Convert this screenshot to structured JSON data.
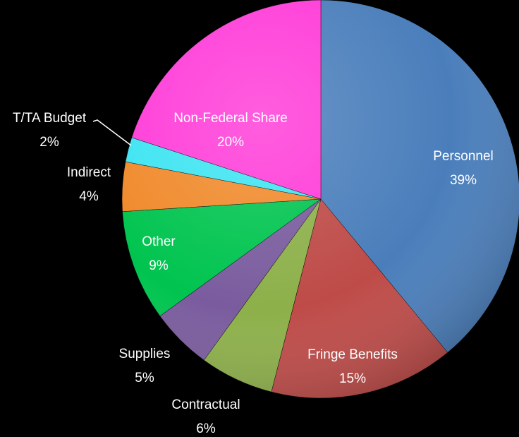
{
  "chart_data": {
    "type": "pie",
    "categories": [
      "Personnel",
      "Fringe Benefits",
      "Contractual",
      "Supplies",
      "Other",
      "Indirect",
      "T/TA Budget",
      "Non-Federal Share"
    ],
    "values": [
      39,
      15,
      6,
      5,
      9,
      4,
      2,
      20
    ],
    "value_labels": [
      "39%",
      "15%",
      "6%",
      "5%",
      "9%",
      "4%",
      "2%",
      "20%"
    ],
    "colors": [
      "#4a7ebb",
      "#be4b48",
      "#8db04a",
      "#7a5c9e",
      "#00c44f",
      "#f0892a",
      "#3ce4f2",
      "#ff3ad8"
    ]
  }
}
